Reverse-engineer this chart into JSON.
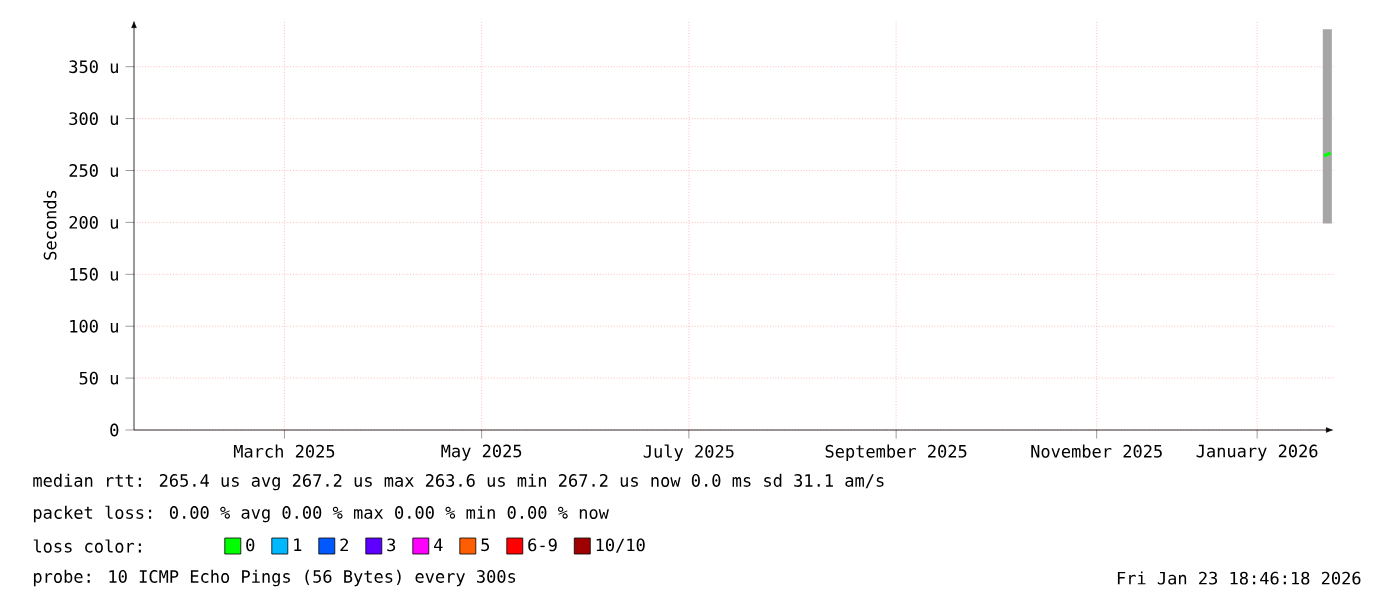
{
  "chart_data": {
    "type": "line",
    "ylabel": "Seconds",
    "legend_title": "loss color:",
    "legend": "bottom",
    "grid": true,
    "xlim": [
      "2025-01-30",
      "2026-01-24"
    ],
    "ylim": [
      0,
      395
    ],
    "xticks": [
      {
        "value": "2025-03-16",
        "label": "March 2025"
      },
      {
        "value": "2025-05-14",
        "label": "May 2025"
      },
      {
        "value": "2025-07-15",
        "label": "July 2025"
      },
      {
        "value": "2025-09-15",
        "label": "September 2025"
      },
      {
        "value": "2025-11-14",
        "label": "November 2025"
      },
      {
        "value": "2026-01-01",
        "label": "January 2026"
      }
    ],
    "yticks": [
      0,
      {
        "value": 50,
        "label": "50 u"
      },
      {
        "value": 100,
        "label": "100 u"
      },
      {
        "value": 150,
        "label": "150 u"
      },
      {
        "value": 200,
        "label": "200 u"
      },
      {
        "value": 250,
        "label": "250 u"
      },
      {
        "value": 300,
        "label": "300 u"
      },
      {
        "value": 350,
        "label": "350 u"
      }
    ],
    "series": [
      {
        "name": "0",
        "color": "#00ff00",
        "x": [
          "2026-01-21",
          "2026-01-23"
        ],
        "values": [
          264,
          267
        ],
        "lower": [
          200,
          200
        ],
        "upper": [
          385,
          385
        ]
      },
      {
        "name": "1",
        "color": "#00b8ff",
        "values": [
          null
        ]
      },
      {
        "name": "2",
        "color": "#0059ff",
        "values": [
          null
        ]
      },
      {
        "name": "3",
        "color": "#5e00ff",
        "values": [
          null
        ]
      },
      {
        "name": "4",
        "color": "#ff00ff",
        "values": [
          null
        ]
      },
      {
        "name": "5",
        "color": "#ff5e00",
        "values": [
          null
        ]
      },
      {
        "name": "6-9",
        "color": "#ff0000",
        "values": [
          null
        ]
      },
      {
        "name": "10/10",
        "color": "#a10000",
        "values": [
          null
        ]
      }
    ],
    "annotations": [
      "median rtt:  265.4 us avg  267.2 us max  263.6 us min  267.2 us now  0.0 ms sd  31.1   am/s",
      "packet loss: 0.00 % avg  0.00 % max  0.00 % min  0.00 % now",
      "probe:       10 ICMP Echo Pings (56 Bytes) every 300s",
      "Fri Jan 23 18:46:18 2026"
    ]
  }
}
